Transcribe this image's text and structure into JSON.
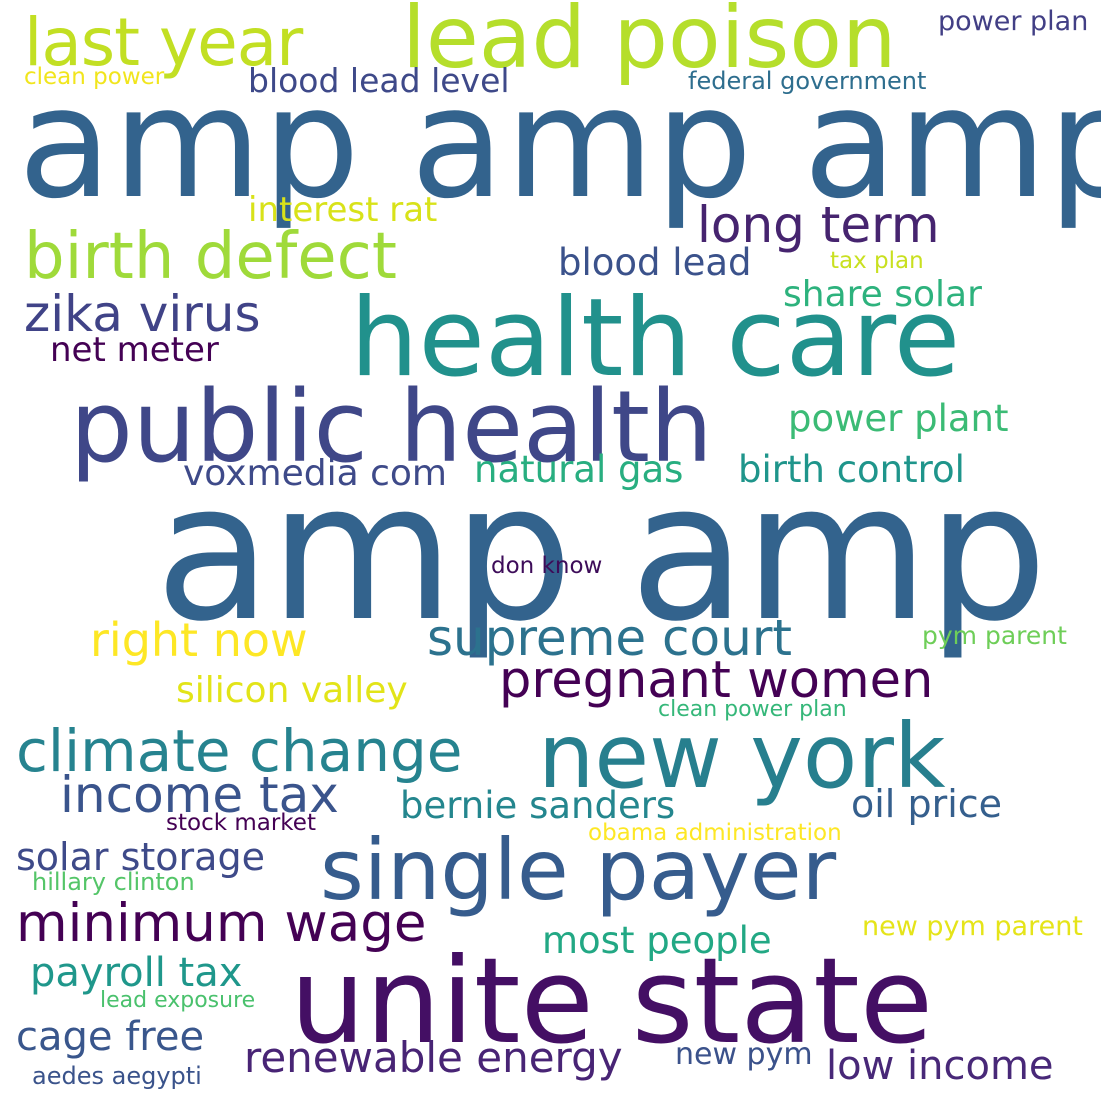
{
  "words": [
    {
      "text": "amp amp amp",
      "color": "#33638d"
    },
    {
      "text": "amp amp",
      "color": "#33638d"
    },
    {
      "text": "lead poison",
      "color": "#b5de2b"
    },
    {
      "text": "last year",
      "color": "#c2df23"
    },
    {
      "text": "power plan",
      "color": "#423f85"
    },
    {
      "text": "clean power",
      "color": "#f1e51d"
    },
    {
      "text": "blood lead level",
      "color": "#3e4989"
    },
    {
      "text": "federal government",
      "color": "#2e6e8e"
    },
    {
      "text": "health care",
      "color": "#21918c"
    },
    {
      "text": "public health",
      "color": "#3f4788"
    },
    {
      "text": "birth defect",
      "color": "#9fda3a"
    },
    {
      "text": "interest rat",
      "color": "#d8e219"
    },
    {
      "text": "long term",
      "color": "#46246f"
    },
    {
      "text": "blood lead",
      "color": "#3b528b"
    },
    {
      "text": "tax plan",
      "color": "#c9e020"
    },
    {
      "text": "zika virus",
      "color": "#404387"
    },
    {
      "text": "share solar",
      "color": "#2db27d"
    },
    {
      "text": "net meter",
      "color": "#440154"
    },
    {
      "text": "power plant",
      "color": "#3bbb75"
    },
    {
      "text": "voxmedia com",
      "color": "#3e4a89"
    },
    {
      "text": "natural gas",
      "color": "#28ae80"
    },
    {
      "text": "birth control",
      "color": "#1f958b"
    },
    {
      "text": "don know",
      "color": "#3d0c59"
    },
    {
      "text": "right now",
      "color": "#fde725"
    },
    {
      "text": "supreme court",
      "color": "#2c728e"
    },
    {
      "text": "pym parent",
      "color": "#6ece58"
    },
    {
      "text": "pregnant women",
      "color": "#440154"
    },
    {
      "text": "silicon valley",
      "color": "#e2e418"
    },
    {
      "text": "clean power plan",
      "color": "#35b779"
    },
    {
      "text": "climate change",
      "color": "#26838f"
    },
    {
      "text": "new york",
      "color": "#277f8e"
    },
    {
      "text": "income tax",
      "color": "#3a548c"
    },
    {
      "text": "bernie sanders",
      "color": "#24868e"
    },
    {
      "text": "oil price",
      "color": "#355f8d"
    },
    {
      "text": "stock market",
      "color": "#440154"
    },
    {
      "text": "obama administration",
      "color": "#fde725"
    },
    {
      "text": "solar storage",
      "color": "#3e4a89"
    },
    {
      "text": "single payer",
      "color": "#365c8d"
    },
    {
      "text": "hillary clinton",
      "color": "#54c568"
    },
    {
      "text": "minimum wage",
      "color": "#440154"
    },
    {
      "text": "new pym parent",
      "color": "#e5e419"
    },
    {
      "text": "most people",
      "color": "#22a884"
    },
    {
      "text": "payroll tax",
      "color": "#1f978b"
    },
    {
      "text": "lead exposure",
      "color": "#4ac16d"
    },
    {
      "text": "unite state",
      "color": "#440f64"
    },
    {
      "text": "cage free",
      "color": "#39568c"
    },
    {
      "text": "renewable energy",
      "color": "#482475"
    },
    {
      "text": "new pym",
      "color": "#3b528b"
    },
    {
      "text": "low income",
      "color": "#482878"
    },
    {
      "text": "aedes aegypti",
      "color": "#3a538b"
    }
  ]
}
